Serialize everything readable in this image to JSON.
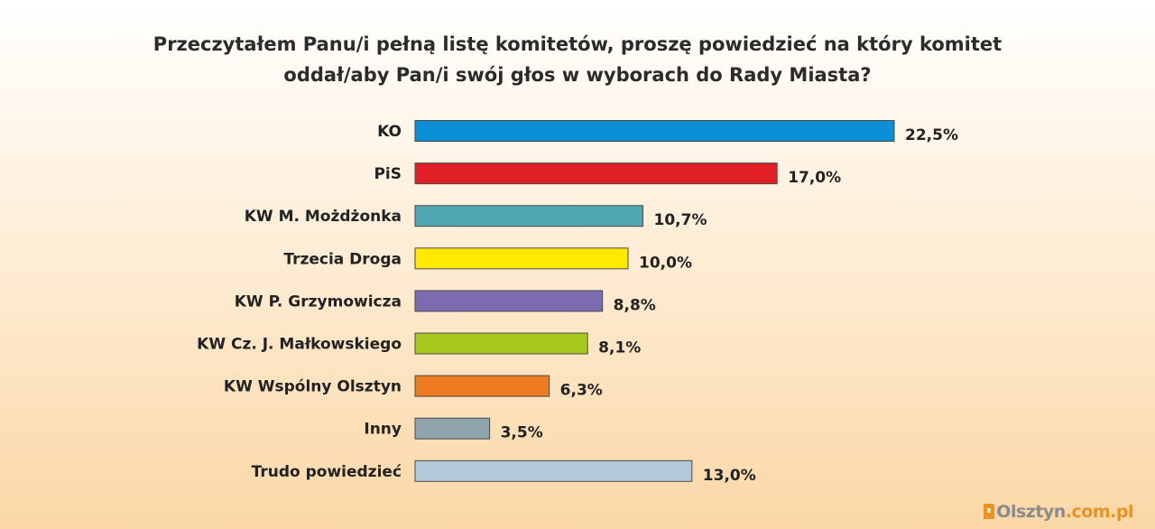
{
  "chart_data": {
    "type": "bar",
    "orientation": "horizontal",
    "title_lines": [
      "Przeczytałem Panu/i pełną listę komitetów, proszę powiedzieć na który komitet",
      "oddał/aby Pan/i swój głos w wyborach do Rady Miasta?"
    ],
    "categories": [
      "KO",
      "PiS",
      "KW M. Możdżonka",
      "Trzecia Droga",
      "KW P. Grzymowicza",
      "KW Cz. J. Małkowskiego",
      "KW Wspólny Olsztyn",
      "Inny",
      "Trudo powiedzieć"
    ],
    "values": [
      22.5,
      17.0,
      10.7,
      10.0,
      8.8,
      8.1,
      6.3,
      3.5,
      13.0
    ],
    "value_labels": [
      "22,5%",
      "17,0%",
      "10,7%",
      "10,0%",
      "8,8%",
      "8,1%",
      "6,3%",
      "3,5%",
      "13,0%"
    ],
    "colors": [
      "#0a8fd6",
      "#e01f26",
      "#4fa7b2",
      "#ffe900",
      "#7b6cb2",
      "#a9c81e",
      "#ee7b1f",
      "#8fa3ad",
      "#b3c9da"
    ],
    "xlim": [
      0,
      22.5
    ],
    "grid": false,
    "legend": "none"
  },
  "watermark": {
    "name": "Olsztyn",
    "domain": ".com.pl"
  }
}
